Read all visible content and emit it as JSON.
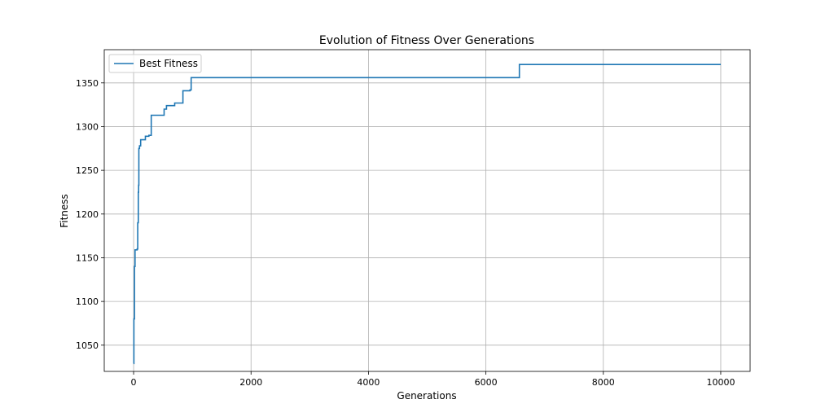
{
  "chart_data": {
    "type": "line",
    "title": "Evolution of Fitness Over Generations",
    "xlabel": "Generations",
    "ylabel": "Fitness",
    "xlim": [
      -500,
      10500
    ],
    "ylim": [
      1020,
      1388
    ],
    "xticks": [
      0,
      2000,
      4000,
      6000,
      8000,
      10000
    ],
    "yticks": [
      1050,
      1100,
      1150,
      1200,
      1250,
      1300,
      1350
    ],
    "grid": true,
    "legend_position": "top-left",
    "series": [
      {
        "name": "Best Fitness",
        "color": "#1f77b4",
        "step": true,
        "x": [
          0,
          5,
          15,
          25,
          40,
          60,
          70,
          80,
          85,
          90,
          100,
          120,
          150,
          200,
          260,
          300,
          500,
          520,
          560,
          700,
          820,
          840,
          960,
          980,
          6560,
          6570,
          10000
        ],
        "y": [
          1029,
          1080,
          1140,
          1159,
          1159,
          1160,
          1190,
          1225,
          1233,
          1275,
          1278,
          1285,
          1285,
          1289,
          1290,
          1313,
          1313,
          1320,
          1324,
          1327,
          1327,
          1341,
          1342,
          1356,
          1356,
          1371,
          1371
        ]
      }
    ]
  }
}
